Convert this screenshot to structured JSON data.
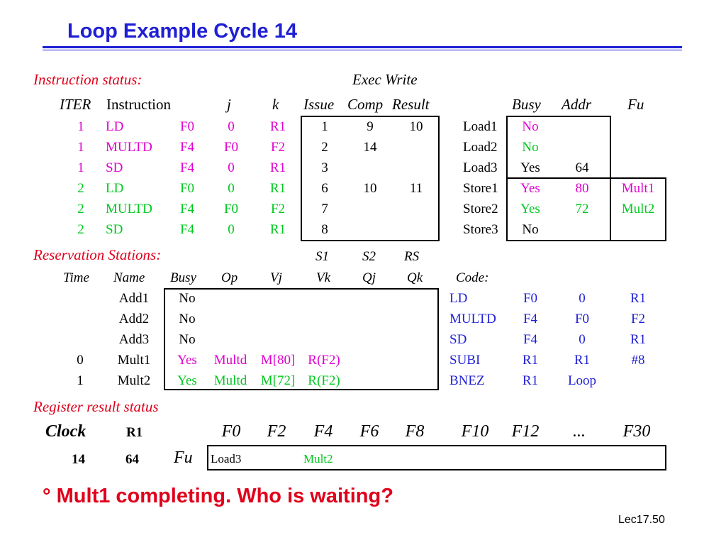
{
  "title": "Loop Example Cycle 14",
  "instr": {
    "section": "Instruction status:",
    "exec_write": "Exec  Write",
    "headers": {
      "iter": "ITER",
      "instruction": "Instruction",
      "j": "j",
      "k": "k",
      "issue": "Issue",
      "comp": "Comp",
      "result": "Result"
    },
    "rows": [
      {
        "iter": "1",
        "op": "LD",
        "dest": "F0",
        "j": "0",
        "k": "R1",
        "issue": "1",
        "comp": "9",
        "result": "10"
      },
      {
        "iter": "1",
        "op": "MULTD",
        "dest": "F4",
        "j": "F0",
        "k": "F2",
        "issue": "2",
        "comp": "14",
        "result": ""
      },
      {
        "iter": "1",
        "op": "SD",
        "dest": "F4",
        "j": "0",
        "k": "R1",
        "issue": "3",
        "comp": "",
        "result": ""
      },
      {
        "iter": "2",
        "op": "LD",
        "dest": "F0",
        "j": "0",
        "k": "R1",
        "issue": "6",
        "comp": "10",
        "result": "11"
      },
      {
        "iter": "2",
        "op": "MULTD",
        "dest": "F4",
        "j": "F0",
        "k": "F2",
        "issue": "7",
        "comp": "",
        "result": ""
      },
      {
        "iter": "2",
        "op": "SD",
        "dest": "F4",
        "j": "0",
        "k": "R1",
        "issue": "8",
        "comp": "",
        "result": ""
      }
    ]
  },
  "loadstore": {
    "headers": {
      "busy": "Busy",
      "addr": "Addr",
      "fu": "Fu"
    },
    "rows": [
      {
        "name": "Load1",
        "busy": "No",
        "addr": "",
        "fu": ""
      },
      {
        "name": "Load2",
        "busy": "No",
        "addr": "",
        "fu": ""
      },
      {
        "name": "Load3",
        "busy": "Yes",
        "addr": "64",
        "fu": ""
      },
      {
        "name": "Store1",
        "busy": "Yes",
        "addr": "80",
        "fu": "Mult1"
      },
      {
        "name": "Store2",
        "busy": "Yes",
        "addr": "72",
        "fu": "Mult2"
      },
      {
        "name": "Store3",
        "busy": "No",
        "addr": "",
        "fu": ""
      }
    ]
  },
  "rs": {
    "section": "Reservation Stations:",
    "s_headers": {
      "s1": "S1",
      "s2": "S2",
      "rs": "RS"
    },
    "headers": {
      "time": "Time",
      "name": "Name",
      "busy": "Busy",
      "op": "Op",
      "vj": "Vj",
      "vk": "Vk",
      "qj": "Qj",
      "qk": "Qk",
      "code": "Code:"
    },
    "rows": [
      {
        "time": "",
        "name": "Add1",
        "busy": "No",
        "op": "",
        "vj": "",
        "vk": ""
      },
      {
        "time": "",
        "name": "Add2",
        "busy": "No",
        "op": "",
        "vj": "",
        "vk": ""
      },
      {
        "time": "",
        "name": "Add3",
        "busy": "No",
        "op": "",
        "vj": "",
        "vk": ""
      },
      {
        "time": "0",
        "name": "Mult1",
        "busy": "Yes",
        "op": "Multd",
        "vj": "M[80]",
        "vk": "R(F2)"
      },
      {
        "time": "1",
        "name": "Mult2",
        "busy": "Yes",
        "op": "Multd",
        "vj": "M[72]",
        "vk": "R(F2)"
      }
    ],
    "code": [
      {
        "op": "LD",
        "a": "F0",
        "b": "0",
        "c": "R1"
      },
      {
        "op": "MULTD",
        "a": "F4",
        "b": "F0",
        "c": "F2"
      },
      {
        "op": "SD",
        "a": "F4",
        "b": "0",
        "c": "R1"
      },
      {
        "op": "SUBI",
        "a": "R1",
        "b": "R1",
        "c": "#8"
      },
      {
        "op": "BNEZ",
        "a": "R1",
        "b": "Loop",
        "c": ""
      }
    ]
  },
  "regs": {
    "section": "Register result status",
    "clock_label": "Clock",
    "r1_label": "R1",
    "fu_label": "Fu",
    "clock": "14",
    "r1": "64",
    "names": [
      "F0",
      "F2",
      "F4",
      "F6",
      "F8",
      "F10",
      "F12",
      "...",
      "F30"
    ],
    "values": [
      "Load3",
      "",
      "Mult2",
      "",
      "",
      "",
      "",
      "",
      ""
    ]
  },
  "bullet": "° Mult1 completing.  Who is waiting?",
  "footer": "Lec17.50",
  "colors": {
    "title": "#1f1fd6",
    "section": "#e0001b",
    "magenta": "#e000d0",
    "green": "#00c81e",
    "blue": "#1f1fd6"
  }
}
